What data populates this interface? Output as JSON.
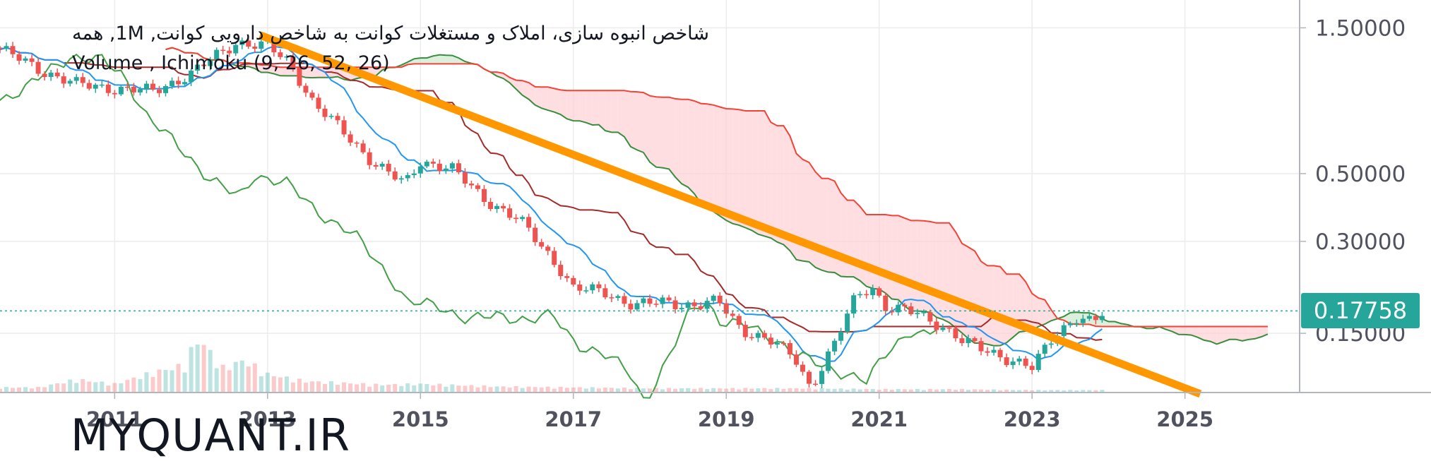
{
  "chart_data": {
    "type": "candlestick",
    "title": "شاخص انبوه سازی، املاک و مستغلات کوانت به شاخص دارویی کوانت, 1M, همه",
    "indicators": "Volume , Ichimoku (9, 26, 52, 26)",
    "watermark": "MYQUANT.IR",
    "y_scale": "log",
    "ylim": [
      0.096,
      1.85
    ],
    "y_ticks": [
      {
        "value": 1.5,
        "label": "1.50000"
      },
      {
        "value": 0.5,
        "label": "0.50000"
      },
      {
        "value": 0.3,
        "label": "0.30000"
      },
      {
        "value": 0.15,
        "label": "0.15000"
      }
    ],
    "xlim": [
      2009.5,
      2026.5
    ],
    "x_ticks": [
      {
        "value": 2011,
        "label": "2011"
      },
      {
        "value": 2013,
        "label": "2013"
      },
      {
        "value": 2015,
        "label": "2015"
      },
      {
        "value": 2017,
        "label": "2017"
      },
      {
        "value": 2019,
        "label": "2019"
      },
      {
        "value": 2021,
        "label": "2021"
      },
      {
        "value": 2023,
        "label": "2023"
      },
      {
        "value": 2025,
        "label": "2025"
      }
    ],
    "last_price": {
      "value": 0.17758,
      "label": "0.17758"
    },
    "grid": true,
    "colors": {
      "up": "#26a69a",
      "down": "#ef5350",
      "conversion": "#2196f3",
      "base": "#a52a2a",
      "lagging": "#43a047",
      "span_a": "#388e3c",
      "span_b": "#f44336",
      "cloud_bearish": "#ffcdd2",
      "cloud_bullish": "#c8e6c9",
      "trendline": "#ff9800",
      "price_label": "#26a69a",
      "axis_text": "#50535e"
    },
    "price_anchors": [
      [
        2009.5,
        1.28
      ],
      [
        2010.0,
        1.1
      ],
      [
        2010.5,
        0.98
      ],
      [
        2011.0,
        0.95
      ],
      [
        2011.5,
        0.93
      ],
      [
        2012.0,
        1.06
      ],
      [
        2012.3,
        1.2
      ],
      [
        2012.6,
        1.35
      ],
      [
        2013.0,
        1.3
      ],
      [
        2013.3,
        1.15
      ],
      [
        2013.6,
        0.85
      ],
      [
        2014.0,
        0.68
      ],
      [
        2014.4,
        0.54
      ],
      [
        2014.8,
        0.46
      ],
      [
        2015.0,
        0.55
      ],
      [
        2015.4,
        0.52
      ],
      [
        2015.8,
        0.42
      ],
      [
        2016.3,
        0.35
      ],
      [
        2016.8,
        0.25
      ],
      [
        2017.0,
        0.21
      ],
      [
        2017.4,
        0.205
      ],
      [
        2017.8,
        0.185
      ],
      [
        2018.2,
        0.19
      ],
      [
        2018.6,
        0.185
      ],
      [
        2018.9,
        0.19
      ],
      [
        2019.2,
        0.155
      ],
      [
        2019.6,
        0.14
      ],
      [
        2019.9,
        0.125
      ],
      [
        2020.1,
        0.1
      ],
      [
        2020.4,
        0.135
      ],
      [
        2020.7,
        0.2
      ],
      [
        2020.9,
        0.215
      ],
      [
        2021.1,
        0.18
      ],
      [
        2021.5,
        0.175
      ],
      [
        2021.8,
        0.16
      ],
      [
        2022.1,
        0.14
      ],
      [
        2022.5,
        0.13
      ],
      [
        2022.8,
        0.12
      ],
      [
        2023.0,
        0.115
      ],
      [
        2023.3,
        0.15
      ],
      [
        2023.6,
        0.17
      ],
      [
        2023.8,
        0.16
      ],
      [
        2023.95,
        0.178
      ]
    ],
    "volume_anchors": [
      [
        2010.0,
        0.05
      ],
      [
        2010.5,
        0.14
      ],
      [
        2011.0,
        0.09
      ],
      [
        2011.5,
        0.22
      ],
      [
        2011.9,
        0.3
      ],
      [
        2012.1,
        0.62
      ],
      [
        2012.4,
        0.27
      ],
      [
        2012.7,
        0.36
      ],
      [
        2013.0,
        0.2
      ],
      [
        2013.5,
        0.12
      ],
      [
        2014.0,
        0.1
      ],
      [
        2014.5,
        0.08
      ],
      [
        2015.0,
        0.09
      ],
      [
        2016.0,
        0.06
      ],
      [
        2017.0,
        0.05
      ],
      [
        2018.0,
        0.04
      ],
      [
        2019.0,
        0.04
      ],
      [
        2020.0,
        0.04
      ],
      [
        2021.0,
        0.03
      ],
      [
        2022.0,
        0.03
      ],
      [
        2023.0,
        0.02
      ],
      [
        2023.95,
        0.02
      ]
    ],
    "trendline": {
      "from": [
        2012.9,
        1.42
      ],
      "to": [
        2025.2,
        0.095
      ]
    }
  }
}
